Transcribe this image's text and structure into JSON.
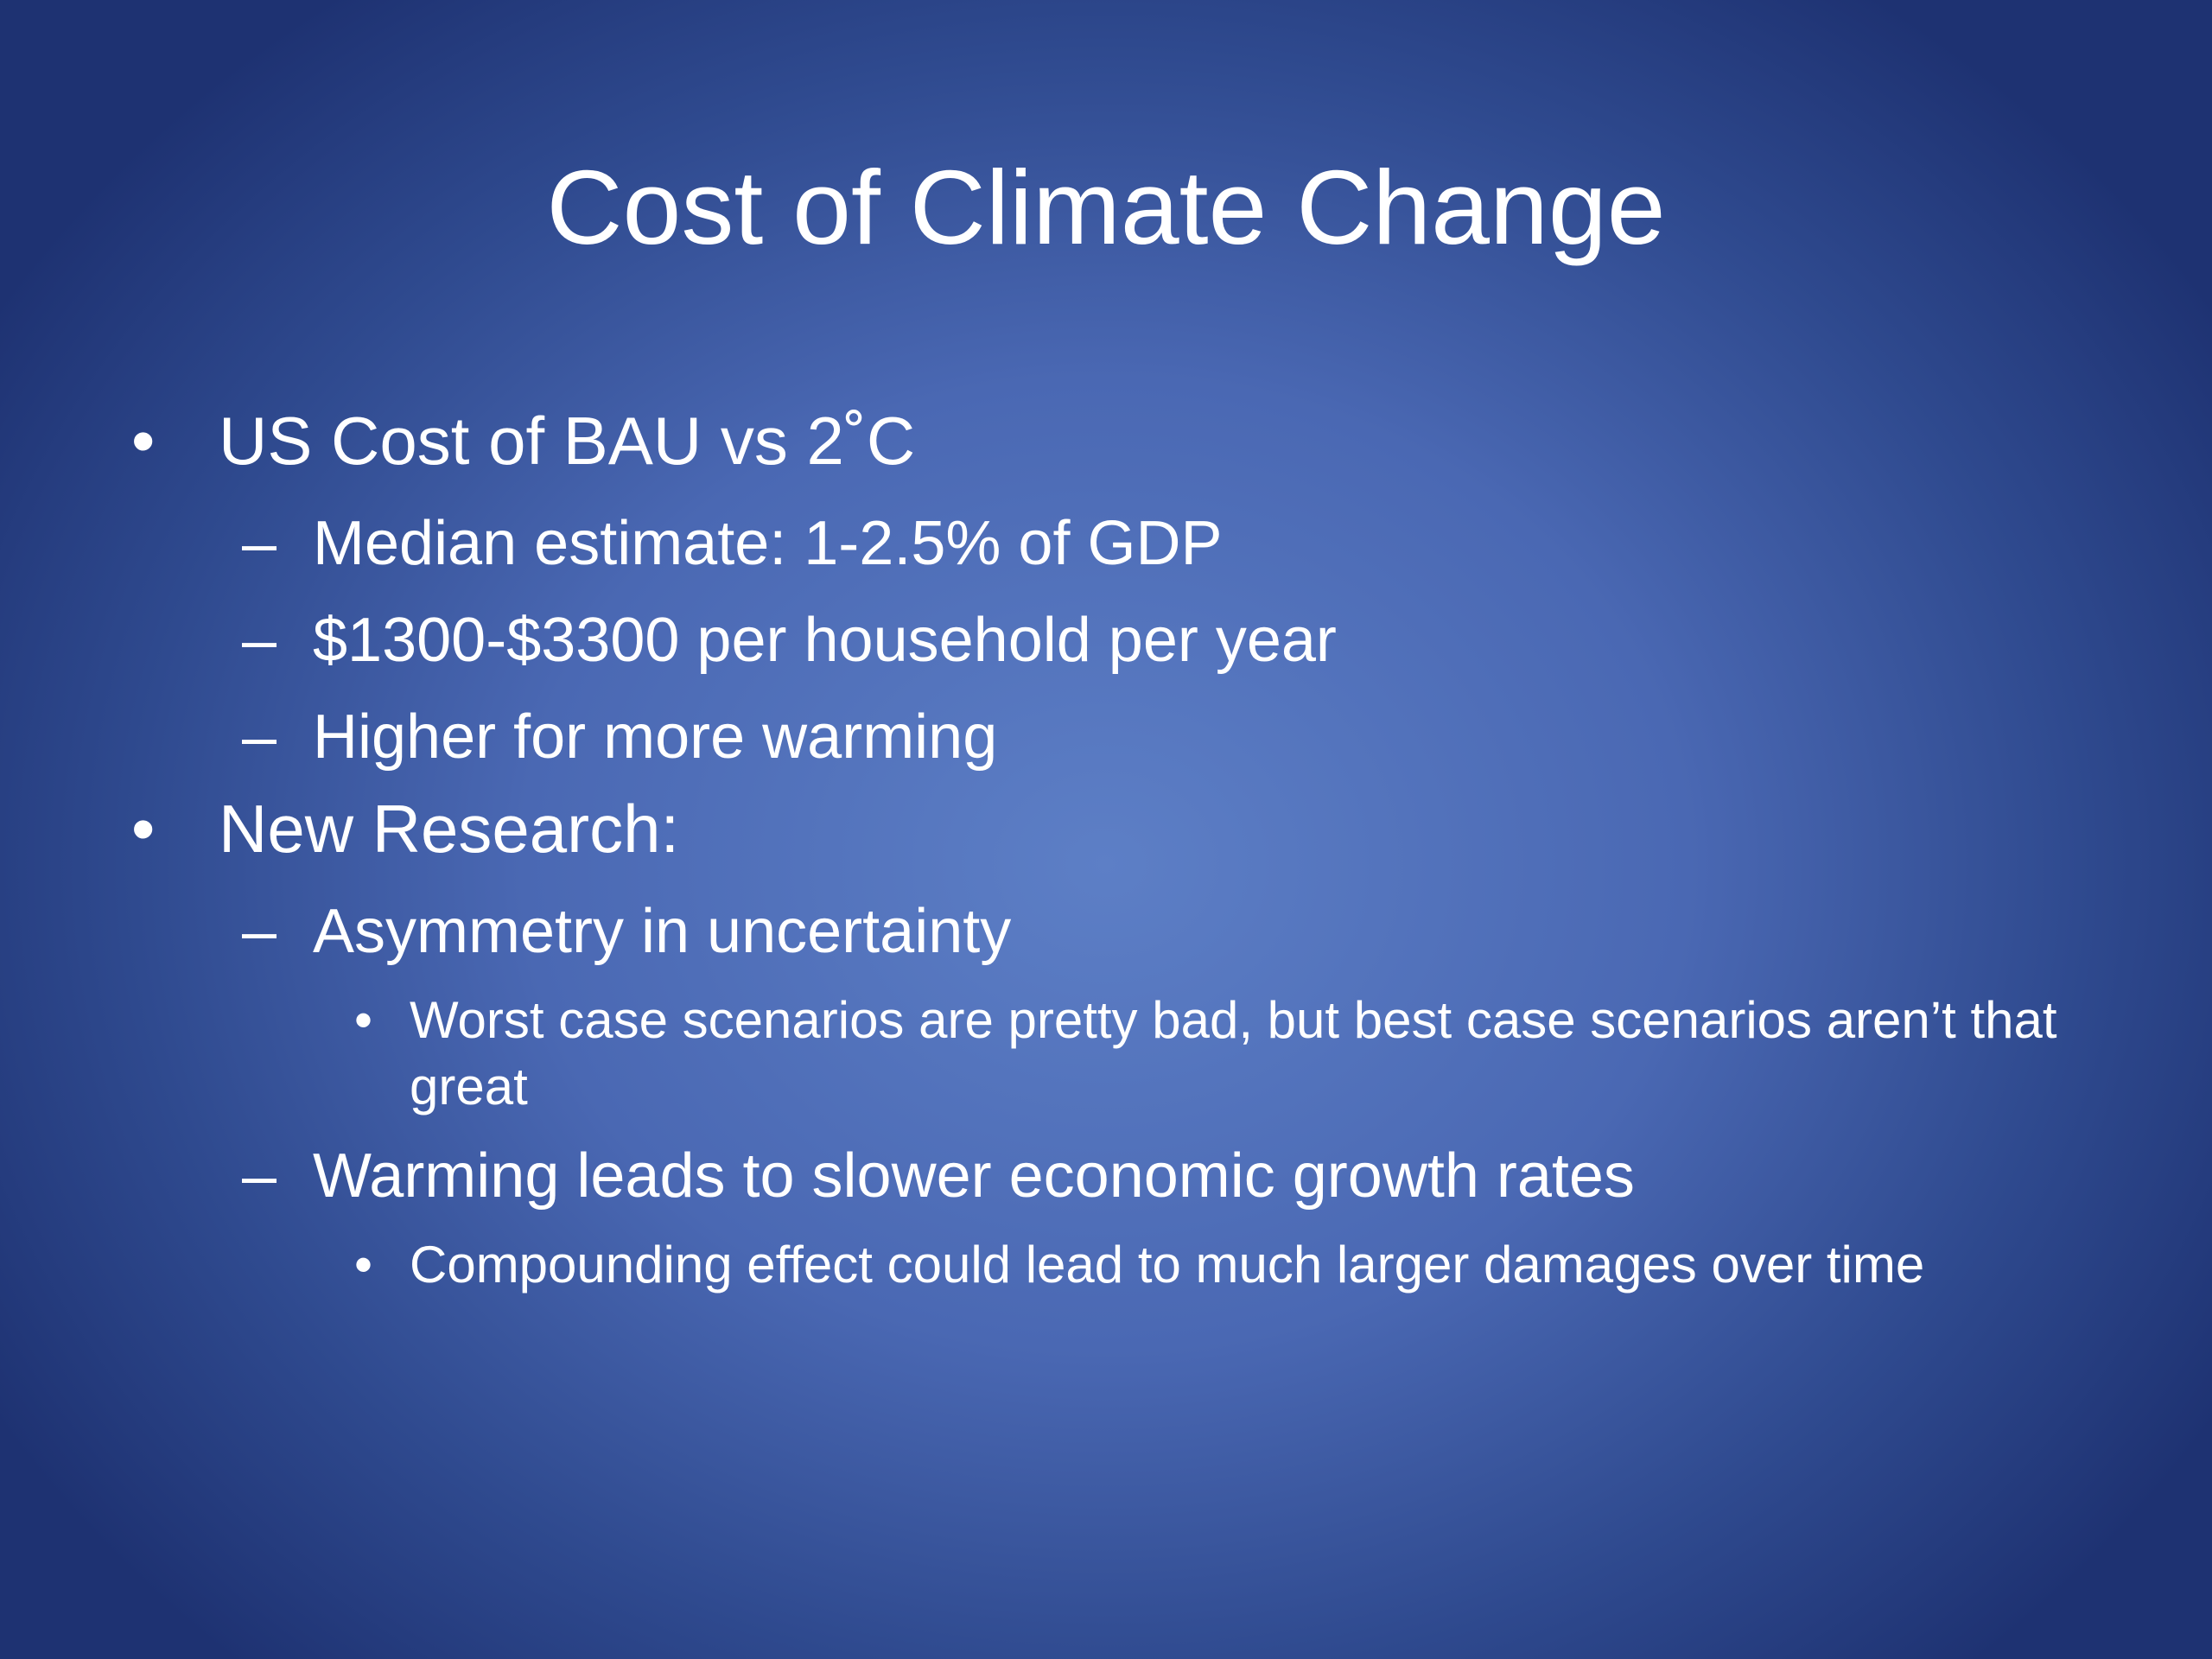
{
  "title": "Cost of Climate Change",
  "bullets": [
    {
      "text": "US Cost of BAU vs 2˚C",
      "items": [
        {
          "text": "Median estimate: 1-2.5% of GDP"
        },
        {
          "text": "$1300-$3300 per household per year"
        },
        {
          "text": "Higher for more warming"
        }
      ]
    },
    {
      "text": "New Research:",
      "items": [
        {
          "text": "Asymmetry in uncertainty",
          "items": [
            {
              "text": "Worst case scenarios are pretty bad, but best case scenarios aren’t that great"
            }
          ]
        },
        {
          "text": "Warming leads to slower economic growth rates",
          "items": [
            {
              "text": "Compounding effect could lead to much larger damages over time"
            }
          ]
        }
      ]
    }
  ]
}
